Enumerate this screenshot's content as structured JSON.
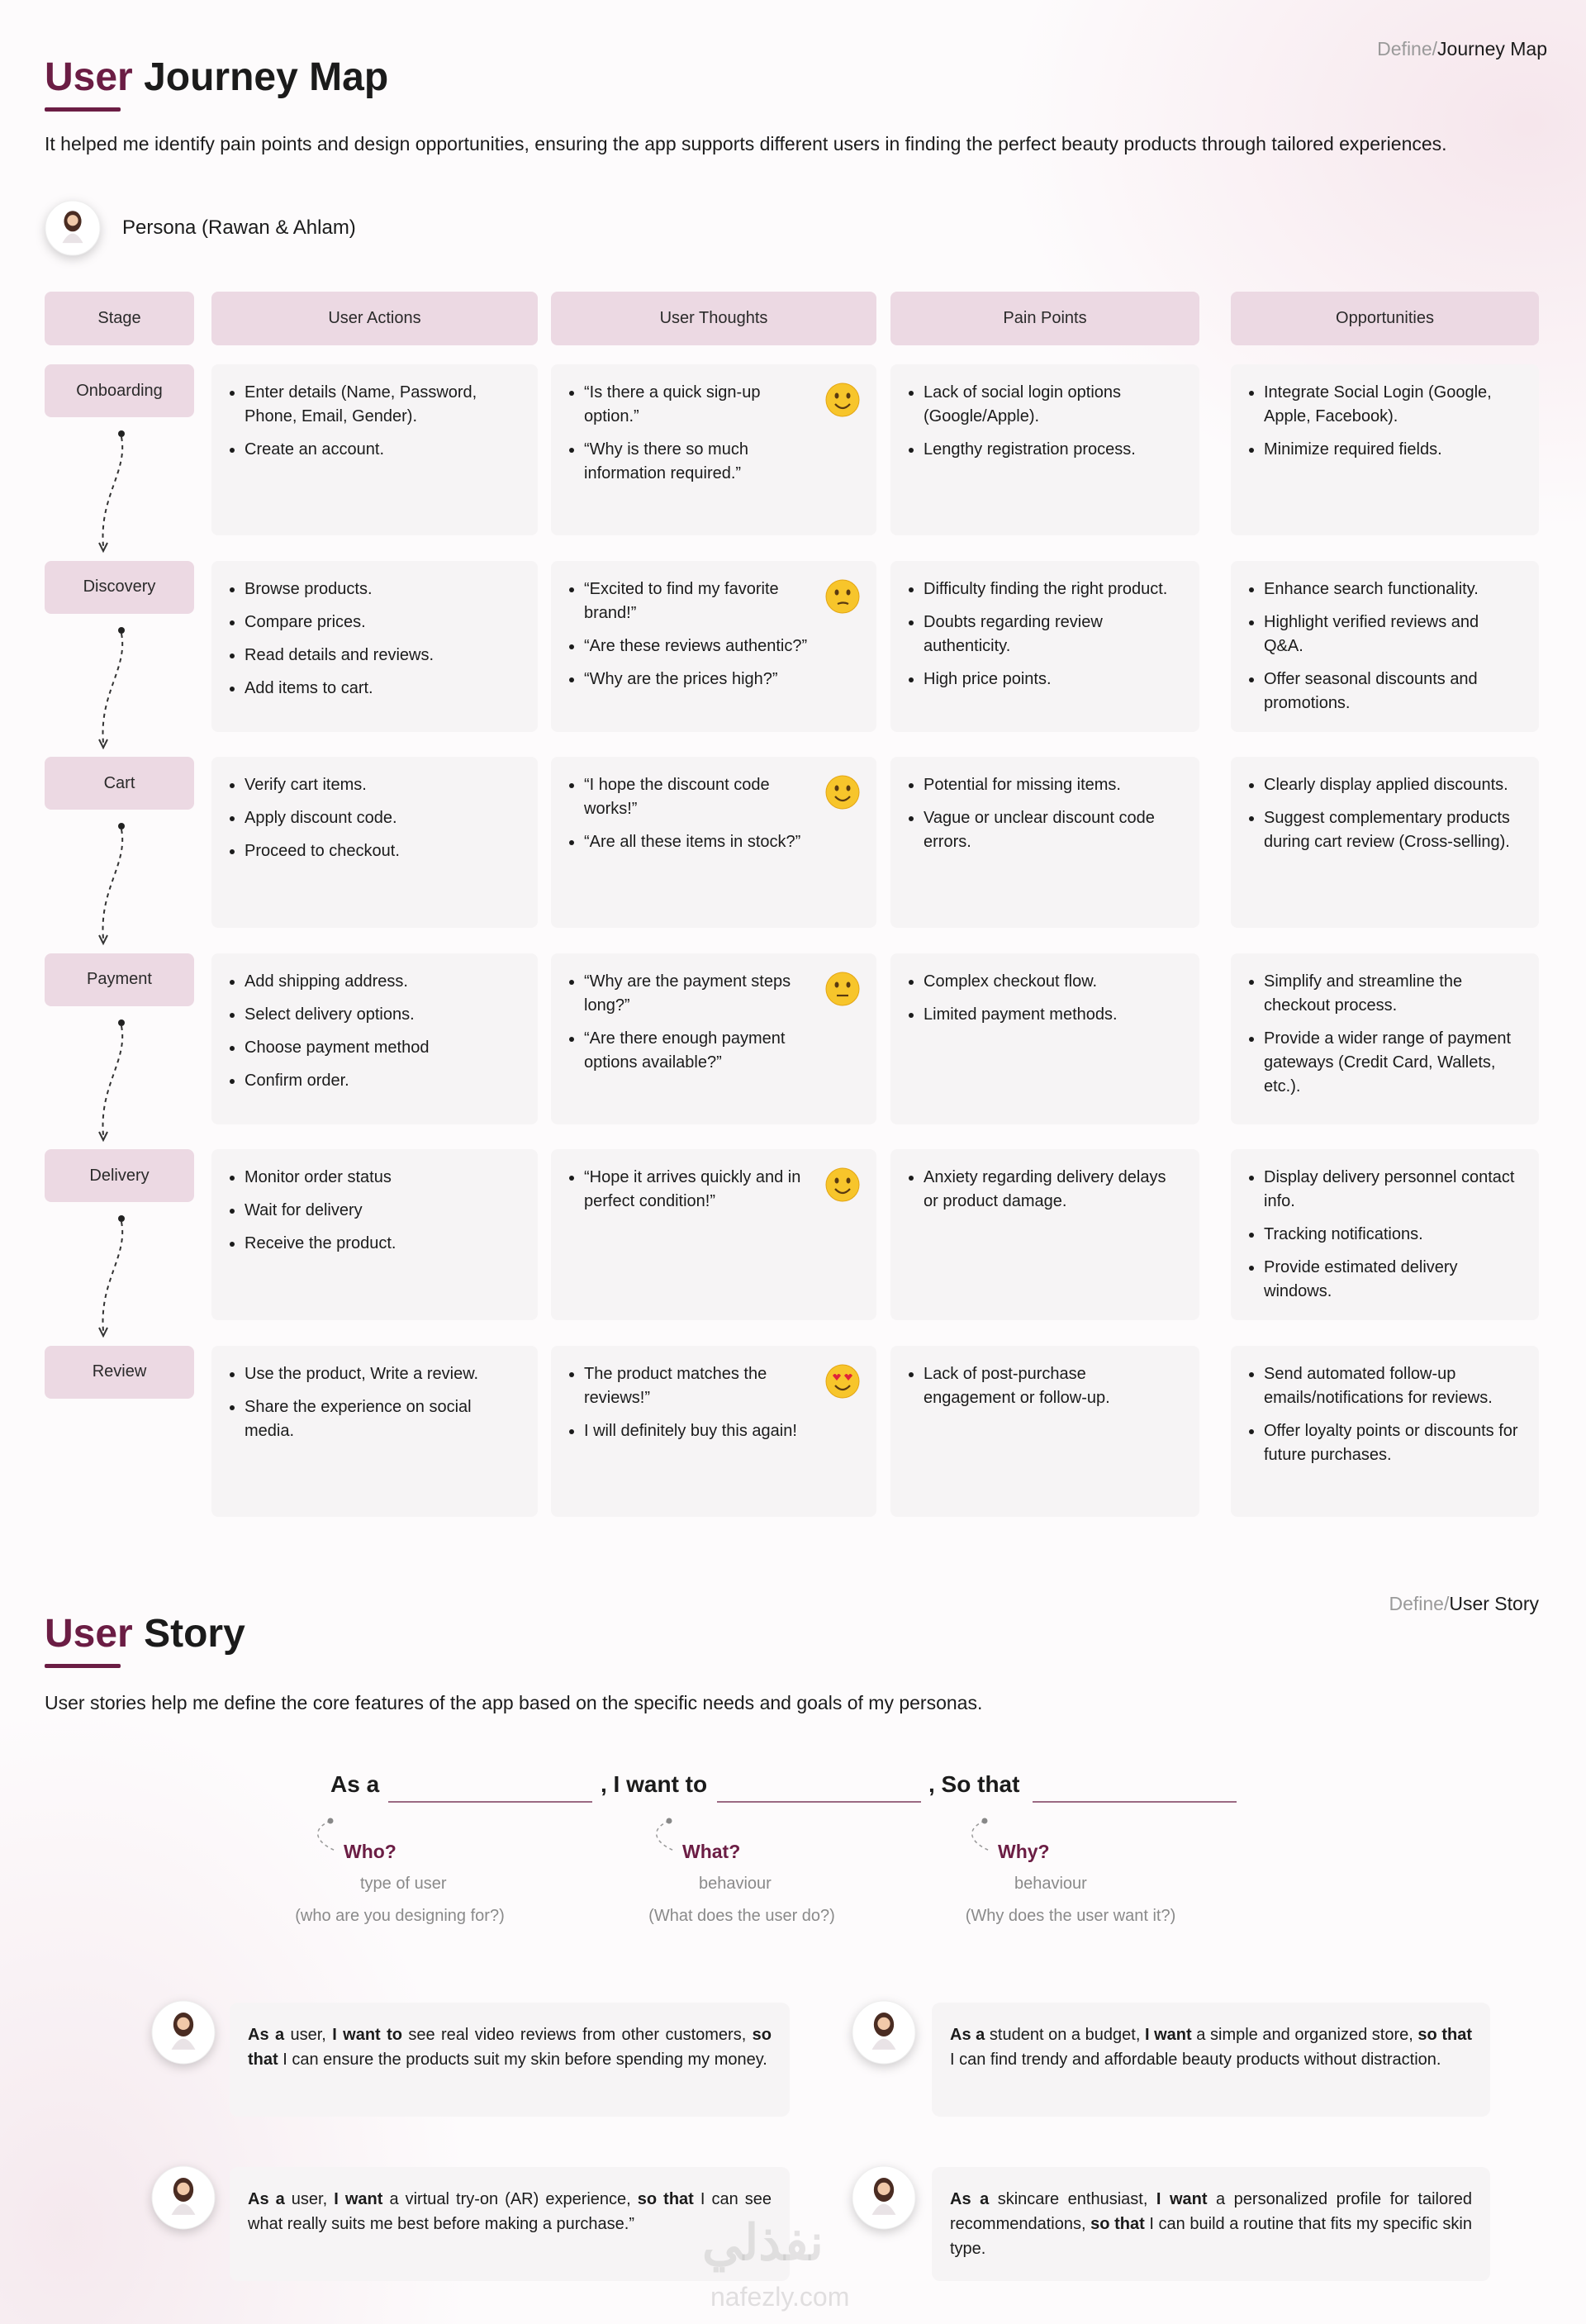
{
  "journey": {
    "breadcrumb": {
      "prefix": "Define/",
      "current": "Journey Map"
    },
    "title": {
      "accent": "User",
      "rest": "Journey Map"
    },
    "intro": "It helped me identify pain points and design opportunities, ensuring the app supports different users in finding the perfect beauty products through tailored experiences.",
    "persona": "Persona (Rawan & Ahlam)",
    "headers": [
      "Stage",
      "User Actions",
      "User Thoughts",
      "Pain Points",
      "Opportunities"
    ],
    "rows": [
      {
        "stage": "Onboarding",
        "actions": [
          "Enter details  (Name, Password, Phone, Email, Gender).",
          "Create an account."
        ],
        "thoughts": [
          "“Is there a quick sign-up option.”",
          "“Why is there so much information required.”"
        ],
        "pains": [
          "Lack of social login options (Google/Apple).",
          "Lengthy registration process."
        ],
        "opportunities": [
          "Integrate Social Login (Google, Apple, Facebook).",
          "Minimize required fields."
        ]
      },
      {
        "stage": "Discovery",
        "actions": [
          "Browse products.",
          "Compare prices.",
          "Read details and reviews.",
          "Add items to cart."
        ],
        "thoughts": [
          "“Excited to find my favorite brand!”",
          "“Are these reviews authentic?”",
          "“Why are the prices high?”"
        ],
        "pains": [
          "Difficulty finding the right product.",
          "Doubts regarding review authenticity.",
          "High price points."
        ],
        "opportunities": [
          "Enhance search functionality.",
          "Highlight verified reviews and Q&A.",
          "Offer seasonal discounts and promotions."
        ]
      },
      {
        "stage": "Cart",
        "actions": [
          "Verify cart items.",
          "Apply discount code.",
          "Proceed to checkout."
        ],
        "thoughts": [
          "“I hope the discount code works!”",
          "“Are all these items in stock?”"
        ],
        "pains": [
          "Potential for missing items.",
          "Vague or unclear discount code errors."
        ],
        "opportunities": [
          "Clearly display applied discounts.",
          "Suggest complementary products during cart review (Cross-selling)."
        ]
      },
      {
        "stage": "Payment",
        "actions": [
          "Add shipping address.",
          "Select delivery options.",
          "Choose payment method",
          "Confirm order."
        ],
        "thoughts": [
          "“Why are the payment steps long?”",
          "“Are there enough payment options available?”"
        ],
        "pains": [
          "Complex checkout flow.",
          "Limited payment methods."
        ],
        "opportunities": [
          "Simplify and streamline the checkout process.",
          "Provide a wider range of payment gateways (Credit Card, Wallets, etc.)."
        ]
      },
      {
        "stage": "Delivery",
        "actions": [
          "Monitor order status",
          "Wait for delivery",
          "Receive the product."
        ],
        "thoughts": [
          "“Hope it arrives quickly and in perfect condition!”"
        ],
        "pains": [
          "Anxiety regarding delivery delays or product damage."
        ],
        "opportunities": [
          "Display delivery personnel contact info.",
          "Tracking notifications.",
          "Provide estimated delivery windows."
        ]
      },
      {
        "stage": "Review",
        "actions": [
          "Use the product, Write a review.",
          "Share the experience on social media."
        ],
        "thoughts": [
          "The product matches the reviews!”",
          "I will definitely buy this again!"
        ],
        "pains": [
          "Lack of post-purchase engagement or follow-up."
        ],
        "opportunities": [
          "Send automated follow-up emails/notifications for reviews.",
          "Offer loyalty points or discounts for future purchases."
        ]
      }
    ]
  },
  "story": {
    "breadcrumb": {
      "prefix": "Define/",
      "current": "User Story"
    },
    "title": {
      "accent": "User",
      "rest": "Story"
    },
    "intro": "User stories help me define the core features of the app based on the specific needs and goals of my personas.",
    "template": [
      {
        "lead": "As a",
        "question": "Who?",
        "label": "type of user",
        "hint": "(who are you designing for?)"
      },
      {
        "lead": ", I want to",
        "question": "What?",
        "label": "behaviour",
        "hint": "(What does the user do?)"
      },
      {
        "lead": ", So that",
        "question": "Why?",
        "label": "behaviour",
        "hint": "(Why does the user want it?)"
      }
    ],
    "stories": [
      {
        "segments": [
          {
            "text": "As a",
            "bold": true
          },
          {
            "text": " user, ",
            "bold": false
          },
          {
            "text": "I want to",
            "bold": true
          },
          {
            "text": " see real video reviews from other customers, ",
            "bold": false
          },
          {
            "text": "so that",
            "bold": true
          },
          {
            "text": " I can ensure the products suit my skin before spending my money.",
            "bold": false
          }
        ]
      },
      {
        "segments": [
          {
            "text": "As a",
            "bold": true
          },
          {
            "text": " student on a budget, ",
            "bold": false
          },
          {
            "text": "I want",
            "bold": true
          },
          {
            "text": " a simple and organized store, ",
            "bold": false
          },
          {
            "text": "so that",
            "bold": true
          },
          {
            "text": " I can find trendy and affordable beauty products without distraction.",
            "bold": false
          }
        ]
      },
      {
        "segments": [
          {
            "text": "As a",
            "bold": true
          },
          {
            "text": " user, ",
            "bold": false
          },
          {
            "text": "I want",
            "bold": true
          },
          {
            "text": " a virtual try-on (AR) experience, ",
            "bold": false
          },
          {
            "text": "so that",
            "bold": true
          },
          {
            "text": " I can see what really suits me best before making a purchase.”",
            "bold": false
          }
        ]
      },
      {
        "segments": [
          {
            "text": "As a",
            "bold": true
          },
          {
            "text": " skincare enthusiast, ",
            "bold": false
          },
          {
            "text": "I want",
            "bold": true
          },
          {
            "text": " a personalized profile for tailored recommendations, ",
            "bold": false
          },
          {
            "text": "so that",
            "bold": true
          },
          {
            "text": " I can build a routine that fits my specific skin type.",
            "bold": false
          }
        ]
      }
    ]
  },
  "watermark": {
    "arabic": "نفذلي",
    "latin": "nafezly.com"
  }
}
